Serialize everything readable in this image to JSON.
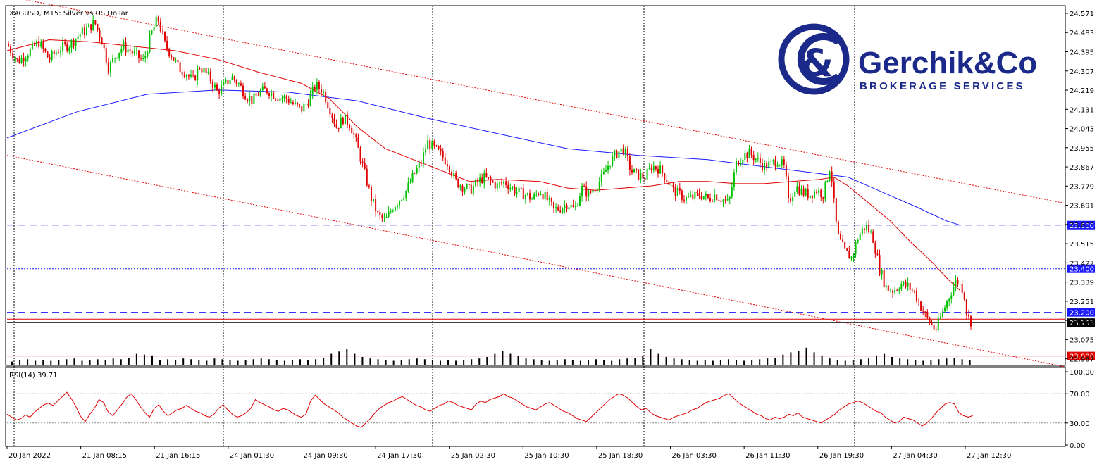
{
  "chart_data": {
    "type": "candlestick",
    "title": "XAGUSD, M15:  Silver vs US Dollar",
    "x_labels": [
      "20 Jan 2022",
      "21 Jan 08:15",
      "21 Jan 16:15",
      "24 Jan 01:30",
      "24 Jan 09:30",
      "24 Jan 17:30",
      "25 Jan 02:30",
      "25 Jan 10:30",
      "25 Jan 18:30",
      "26 Jan 03:30",
      "26 Jan 11:30",
      "26 Jan 19:30",
      "27 Jan 04:30",
      "27 Jan 12:30"
    ],
    "y_ticks": [
      "24.571",
      "24.483",
      "24.395",
      "24.307",
      "24.219",
      "24.131",
      "24.043",
      "23.955",
      "23.867",
      "23.779",
      "23.691",
      "23.603",
      "23.515",
      "23.427",
      "23.339",
      "23.251",
      "23.163",
      "23.075",
      "22.987"
    ],
    "ylim": [
      22.96,
      24.6
    ],
    "close_path": [
      [
        0,
        24.43
      ],
      [
        15,
        24.35
      ],
      [
        30,
        24.39
      ],
      [
        45,
        24.44
      ],
      [
        60,
        24.36
      ],
      [
        75,
        24.41
      ],
      [
        90,
        24.43
      ],
      [
        105,
        24.48
      ],
      [
        115,
        24.5
      ],
      [
        125,
        24.53
      ],
      [
        135,
        24.45
      ],
      [
        145,
        24.32
      ],
      [
        155,
        24.38
      ],
      [
        165,
        24.42
      ],
      [
        180,
        24.39
      ],
      [
        195,
        24.35
      ],
      [
        205,
        24.47
      ],
      [
        215,
        24.55
      ],
      [
        225,
        24.43
      ],
      [
        235,
        24.38
      ],
      [
        245,
        24.32
      ],
      [
        255,
        24.3
      ],
      [
        265,
        24.26
      ],
      [
        275,
        24.33
      ],
      [
        290,
        24.27
      ],
      [
        300,
        24.21
      ],
      [
        310,
        24.24
      ],
      [
        320,
        24.28
      ],
      [
        330,
        24.25
      ],
      [
        340,
        24.2
      ],
      [
        350,
        24.17
      ],
      [
        360,
        24.21
      ],
      [
        370,
        24.22
      ],
      [
        385,
        24.19
      ],
      [
        400,
        24.18
      ],
      [
        410,
        24.15
      ],
      [
        420,
        24.13
      ],
      [
        430,
        24.17
      ],
      [
        440,
        24.24
      ],
      [
        450,
        24.22
      ],
      [
        460,
        24.14
      ],
      [
        470,
        24.05
      ],
      [
        480,
        24.09
      ],
      [
        490,
        24.06
      ],
      [
        500,
        23.96
      ],
      [
        510,
        23.84
      ],
      [
        520,
        23.72
      ],
      [
        530,
        23.64
      ],
      [
        540,
        23.62
      ],
      [
        550,
        23.68
      ],
      [
        560,
        23.72
      ],
      [
        570,
        23.76
      ],
      [
        580,
        23.83
      ],
      [
        590,
        23.88
      ],
      [
        600,
        23.98
      ],
      [
        610,
        23.95
      ],
      [
        620,
        23.92
      ],
      [
        630,
        23.88
      ],
      [
        640,
        23.8
      ],
      [
        650,
        23.78
      ],
      [
        660,
        23.76
      ],
      [
        670,
        23.79
      ],
      [
        680,
        23.82
      ],
      [
        690,
        23.8
      ],
      [
        700,
        23.78
      ],
      [
        710,
        23.8
      ],
      [
        720,
        23.77
      ],
      [
        730,
        23.75
      ],
      [
        740,
        23.74
      ],
      [
        750,
        23.72
      ],
      [
        760,
        23.76
      ],
      [
        770,
        23.72
      ],
      [
        780,
        23.67
      ],
      [
        790,
        23.68
      ],
      [
        800,
        23.7
      ],
      [
        810,
        23.67
      ],
      [
        820,
        23.77
      ],
      [
        830,
        23.74
      ],
      [
        840,
        23.78
      ],
      [
        850,
        23.82
      ],
      [
        860,
        23.89
      ],
      [
        870,
        23.93
      ],
      [
        880,
        23.95
      ],
      [
        890,
        23.85
      ],
      [
        900,
        23.83
      ],
      [
        910,
        23.82
      ],
      [
        920,
        23.87
      ],
      [
        930,
        23.86
      ],
      [
        940,
        23.82
      ],
      [
        950,
        23.76
      ],
      [
        960,
        23.74
      ],
      [
        970,
        23.72
      ],
      [
        980,
        23.73
      ],
      [
        990,
        23.74
      ],
      [
        1000,
        23.72
      ],
      [
        1010,
        23.74
      ],
      [
        1020,
        23.72
      ],
      [
        1030,
        23.7
      ],
      [
        1040,
        23.88
      ],
      [
        1050,
        23.92
      ],
      [
        1060,
        23.93
      ],
      [
        1070,
        23.9
      ],
      [
        1080,
        23.87
      ],
      [
        1090,
        23.88
      ],
      [
        1100,
        23.9
      ],
      [
        1110,
        23.86
      ],
      [
        1115,
        23.7
      ],
      [
        1125,
        23.78
      ],
      [
        1135,
        23.75
      ],
      [
        1145,
        23.74
      ],
      [
        1155,
        23.76
      ],
      [
        1165,
        23.74
      ],
      [
        1175,
        23.88
      ],
      [
        1180,
        23.7
      ],
      [
        1185,
        23.55
      ],
      [
        1195,
        23.48
      ],
      [
        1205,
        23.45
      ],
      [
        1215,
        23.55
      ],
      [
        1225,
        23.6
      ],
      [
        1235,
        23.55
      ],
      [
        1245,
        23.4
      ],
      [
        1255,
        23.31
      ],
      [
        1265,
        23.3
      ],
      [
        1275,
        23.33
      ],
      [
        1285,
        23.32
      ],
      [
        1295,
        23.29
      ],
      [
        1305,
        23.22
      ],
      [
        1315,
        23.16
      ],
      [
        1325,
        23.12
      ],
      [
        1335,
        23.2
      ],
      [
        1345,
        23.28
      ],
      [
        1355,
        23.35
      ],
      [
        1365,
        23.3
      ],
      [
        1370,
        23.18
      ],
      [
        1378,
        23.15
      ]
    ],
    "ma_blue": [
      [
        0,
        24.0
      ],
      [
        100,
        24.12
      ],
      [
        200,
        24.2
      ],
      [
        300,
        24.22
      ],
      [
        400,
        24.21
      ],
      [
        500,
        24.17
      ],
      [
        600,
        24.09
      ],
      [
        700,
        24.02
      ],
      [
        800,
        23.95
      ],
      [
        900,
        23.92
      ],
      [
        1000,
        23.9
      ],
      [
        1100,
        23.86
      ],
      [
        1200,
        23.82
      ],
      [
        1250,
        23.75
      ],
      [
        1300,
        23.68
      ],
      [
        1340,
        23.62
      ],
      [
        1360,
        23.6
      ]
    ],
    "ma_red": [
      [
        0,
        24.4
      ],
      [
        60,
        24.45
      ],
      [
        120,
        24.44
      ],
      [
        180,
        24.42
      ],
      [
        240,
        24.4
      ],
      [
        300,
        24.36
      ],
      [
        360,
        24.3
      ],
      [
        420,
        24.25
      ],
      [
        460,
        24.18
      ],
      [
        500,
        24.05
      ],
      [
        540,
        23.95
      ],
      [
        580,
        23.9
      ],
      [
        620,
        23.85
      ],
      [
        660,
        23.8
      ],
      [
        700,
        23.81
      ],
      [
        760,
        23.8
      ],
      [
        800,
        23.77
      ],
      [
        840,
        23.76
      ],
      [
        880,
        23.77
      ],
      [
        920,
        23.78
      ],
      [
        960,
        23.8
      ],
      [
        1000,
        23.8
      ],
      [
        1040,
        23.79
      ],
      [
        1080,
        23.79
      ],
      [
        1120,
        23.8
      ],
      [
        1160,
        23.81
      ],
      [
        1180,
        23.82
      ],
      [
        1200,
        23.78
      ],
      [
        1230,
        23.7
      ],
      [
        1260,
        23.62
      ],
      [
        1290,
        23.52
      ],
      [
        1320,
        23.43
      ],
      [
        1340,
        23.36
      ],
      [
        1360,
        23.3
      ]
    ],
    "volume": [
      4,
      6,
      7,
      5,
      6,
      5,
      6,
      7,
      8,
      5,
      6,
      7,
      6,
      8,
      7,
      9,
      14,
      13,
      12,
      6,
      7,
      6,
      8,
      7,
      6,
      5,
      8,
      7,
      6,
      5,
      6,
      7,
      8,
      7,
      6,
      5,
      6,
      7,
      6,
      7,
      9,
      14,
      17,
      20,
      14,
      10,
      8,
      7,
      6,
      5,
      6,
      7,
      8,
      7,
      6,
      5,
      6,
      5,
      6,
      7,
      8,
      10,
      14,
      18,
      14,
      11,
      8,
      7,
      6,
      5,
      6,
      7,
      6,
      5,
      6,
      7,
      6,
      5,
      7,
      8,
      9,
      11,
      20,
      14,
      10,
      8,
      7,
      6,
      5,
      6,
      5,
      6,
      7,
      6,
      5,
      6,
      7,
      8,
      9,
      13,
      16,
      18,
      22,
      16,
      12,
      8,
      6,
      5,
      6,
      7,
      8,
      12,
      14,
      10,
      8,
      7,
      6,
      5,
      6,
      7,
      8,
      9,
      7,
      6
    ],
    "rsi": {
      "label": "RSI(14) 39.71",
      "ticks": [
        "100.00",
        "70.00",
        "30.00",
        "0.00"
      ],
      "levels": [
        70,
        30
      ],
      "values": [
        42,
        38,
        34,
        36,
        41,
        38,
        45,
        50,
        55,
        57,
        54,
        60,
        66,
        72,
        63,
        52,
        39,
        32,
        42,
        50,
        62,
        58,
        45,
        40,
        48,
        56,
        65,
        70,
        62,
        52,
        44,
        38,
        50,
        55,
        46,
        40,
        44,
        48,
        50,
        54,
        50,
        46,
        44,
        40,
        38,
        42,
        50,
        55,
        48,
        42,
        38,
        40,
        44,
        50,
        62,
        58,
        55,
        52,
        48,
        46,
        50,
        48,
        44,
        40,
        38,
        42,
        60,
        68,
        62,
        56,
        52,
        48,
        44,
        38,
        34,
        30,
        26,
        24,
        30,
        36,
        44,
        50,
        54,
        58,
        60,
        64,
        66,
        62,
        58,
        54,
        52,
        48,
        46,
        50,
        54,
        56,
        60,
        58,
        54,
        52,
        50,
        48,
        56,
        60,
        58,
        62,
        64,
        66,
        70,
        66,
        64,
        60,
        56,
        52,
        50,
        48,
        52,
        56,
        58,
        54,
        50,
        46,
        44,
        40,
        36,
        34,
        32,
        38,
        44,
        50,
        56,
        62,
        66,
        70,
        68,
        64,
        58,
        52,
        48,
        50,
        44,
        40,
        38,
        36,
        34,
        38,
        40,
        42,
        44,
        48,
        50,
        54,
        58,
        60,
        62,
        64,
        68,
        70,
        64,
        58,
        54,
        50,
        46,
        42,
        40,
        36,
        34,
        38,
        36,
        38,
        42,
        40,
        44,
        38,
        36,
        34,
        32,
        30,
        34,
        38,
        42,
        48,
        52,
        56,
        58,
        60,
        58,
        54,
        50,
        46,
        44,
        38,
        34,
        30,
        32,
        38,
        36,
        34,
        30,
        26,
        30,
        36,
        44,
        50,
        56,
        58,
        56,
        44,
        40,
        38,
        40
      ]
    },
    "horizontal_levels": [
      {
        "value": 23.6,
        "label": "23.600",
        "color": "#1a1aff",
        "style": "dash"
      },
      {
        "value": 23.4,
        "label": "23.400",
        "color": "#1a1aff",
        "style": "dot"
      },
      {
        "value": 23.2,
        "label": "23.200",
        "color": "#1a1aff",
        "style": "dash"
      },
      {
        "value": 23.153,
        "label": "23.153",
        "color": "#000000",
        "style": "solid"
      },
      {
        "value": 23.0,
        "label": "23.000",
        "color": "#e00000",
        "style": "solid"
      }
    ],
    "channel_lines": {
      "upper": [
        [
          0,
          24.65
        ],
        [
          1510,
          23.7
        ]
      ],
      "lower": [
        [
          0,
          23.92
        ],
        [
          1510,
          22.95
        ]
      ]
    },
    "colors": {
      "bull": "#00c000",
      "bear": "#e00000",
      "ma_blue": "#1a1aff",
      "ma_red": "#e00000",
      "rsi": "#e00000",
      "volume": "#000000"
    }
  },
  "logo": {
    "name": "Gerchik&Co",
    "sub": "BROKERAGE SERVICES"
  }
}
